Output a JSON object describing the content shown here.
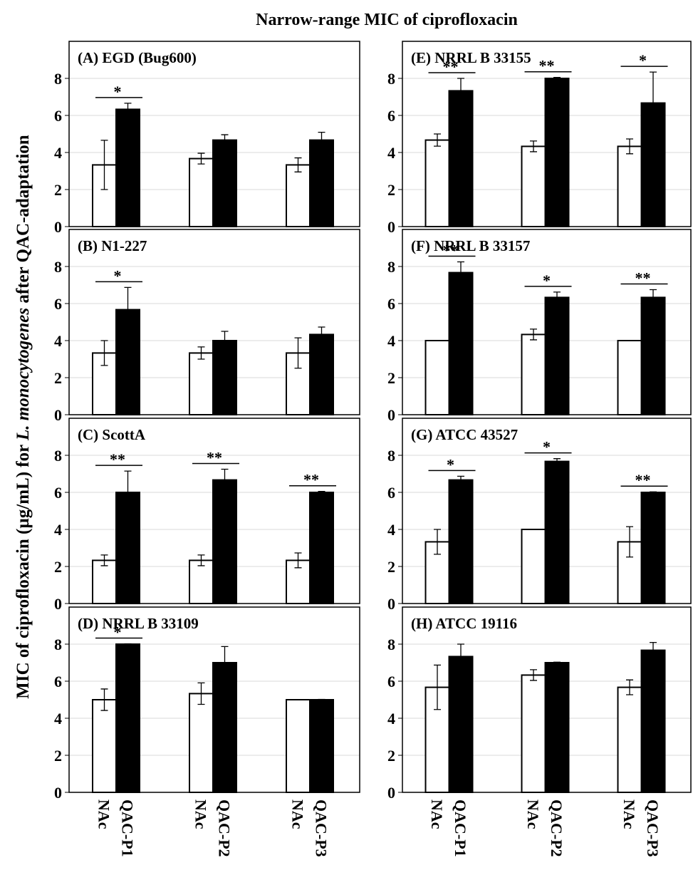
{
  "title": "Narrow-range MIC of ciprofloxacin",
  "ylabel": [
    "MIC of  ciprofloxacin (µg/mL) for ",
    "L. monocytogenes",
    "  after QAC-adaptation"
  ],
  "chart_data": [
    {
      "type": "bar",
      "title": "(A) EGD (Bug600)",
      "ylim": [
        0,
        10
      ],
      "yticks": [
        0,
        2,
        4,
        6,
        8
      ],
      "grid": true,
      "series": [
        {
          "color": "#ffffff",
          "values": [
            3.33,
            3.67,
            3.33
          ],
          "errors": [
            1.33,
            0.29,
            0.38
          ]
        },
        {
          "color": "#000000",
          "values": [
            6.33,
            4.67,
            4.67
          ],
          "errors": [
            0.33,
            0.29,
            0.42
          ]
        }
      ],
      "significance": [
        "*",
        null,
        null
      ]
    },
    {
      "type": "bar",
      "title": "(B) N1-227",
      "ylim": [
        0,
        10
      ],
      "yticks": [
        0,
        2,
        4,
        6,
        8
      ],
      "grid": true,
      "series": [
        {
          "color": "#ffffff",
          "values": [
            3.33,
            3.33,
            3.33
          ],
          "errors": [
            0.67,
            0.33,
            0.82
          ]
        },
        {
          "color": "#000000",
          "values": [
            5.67,
            4.0,
            4.33
          ],
          "errors": [
            1.2,
            0.5,
            0.4
          ]
        }
      ],
      "significance": [
        "*",
        null,
        null
      ]
    },
    {
      "type": "bar",
      "title": "(C) ScottA",
      "ylim": [
        0,
        10
      ],
      "yticks": [
        0,
        2,
        4,
        6,
        8
      ],
      "grid": true,
      "series": [
        {
          "color": "#ffffff",
          "values": [
            2.33,
            2.33,
            2.33
          ],
          "errors": [
            0.29,
            0.29,
            0.4
          ]
        },
        {
          "color": "#000000",
          "values": [
            6.0,
            6.67,
            6.0
          ],
          "errors": [
            1.15,
            0.58,
            0.05
          ]
        }
      ],
      "significance": [
        "**",
        "**",
        "**"
      ]
    },
    {
      "type": "bar",
      "title": "(D) NRRL B 33109",
      "ylim": [
        0,
        10
      ],
      "yticks": [
        0,
        2,
        4,
        6,
        8
      ],
      "grid": true,
      "series": [
        {
          "color": "#ffffff",
          "values": [
            5.0,
            5.33,
            5.0
          ],
          "errors": [
            0.58,
            0.58,
            0
          ],
          "labels": [
            "NAc",
            "NAc",
            "NAc"
          ]
        },
        {
          "color": "#000000",
          "values": [
            8.0,
            7.0,
            5.0
          ],
          "errors": [
            0.02,
            0.87,
            0.02
          ],
          "labels": [
            "QAC-P1",
            "QAC-P2",
            "QAC-P3"
          ]
        }
      ],
      "significance": [
        "*",
        null,
        null
      ]
    },
    {
      "type": "bar",
      "title": "(E) NRRL B 33155",
      "ylim": [
        0,
        10
      ],
      "yticks": [
        0,
        2,
        4,
        6,
        8
      ],
      "grid": true,
      "series": [
        {
          "color": "#ffffff",
          "values": [
            4.67,
            4.33,
            4.33
          ],
          "errors": [
            0.33,
            0.29,
            0.4
          ]
        },
        {
          "color": "#000000",
          "values": [
            7.33,
            8.0,
            6.67
          ],
          "errors": [
            0.67,
            0.05,
            1.67
          ]
        }
      ],
      "significance": [
        "**",
        "**",
        "*"
      ]
    },
    {
      "type": "bar",
      "title": "(F) NRRL B 33157",
      "ylim": [
        0,
        10
      ],
      "yticks": [
        0,
        2,
        4,
        6,
        8
      ],
      "grid": true,
      "series": [
        {
          "color": "#ffffff",
          "values": [
            4.0,
            4.33,
            4.0
          ],
          "errors": [
            0,
            0.29,
            0
          ]
        },
        {
          "color": "#000000",
          "values": [
            7.67,
            6.33,
            6.33
          ],
          "errors": [
            0.58,
            0.29,
            0.42
          ]
        }
      ],
      "significance": [
        "**",
        "*",
        "**"
      ]
    },
    {
      "type": "bar",
      "title": "(G) ATCC 43527",
      "ylim": [
        0,
        10
      ],
      "yticks": [
        0,
        2,
        4,
        6,
        8
      ],
      "grid": true,
      "series": [
        {
          "color": "#ffffff",
          "values": [
            3.33,
            4.0,
            3.33
          ],
          "errors": [
            0.67,
            0,
            0.82
          ]
        },
        {
          "color": "#000000",
          "values": [
            6.67,
            7.67,
            6.0
          ],
          "errors": [
            0.2,
            0.15,
            0.03
          ]
        }
      ],
      "significance": [
        "*",
        "*",
        "**"
      ]
    },
    {
      "type": "bar",
      "title": "(H) ATCC 19116",
      "ylim": [
        0,
        10
      ],
      "yticks": [
        0,
        2,
        4,
        6,
        8
      ],
      "grid": true,
      "series": [
        {
          "color": "#ffffff",
          "values": [
            5.67,
            6.33,
            5.67
          ],
          "errors": [
            1.2,
            0.29,
            0.4
          ],
          "labels": [
            "NAc",
            "NAc",
            "NAc"
          ]
        },
        {
          "color": "#000000",
          "values": [
            7.33,
            7.0,
            7.67
          ],
          "errors": [
            0.67,
            0.03,
            0.42
          ],
          "labels": [
            "QAC-P1",
            "QAC-P2",
            "QAC-P3"
          ]
        }
      ],
      "significance": [
        null,
        null,
        null
      ]
    }
  ]
}
